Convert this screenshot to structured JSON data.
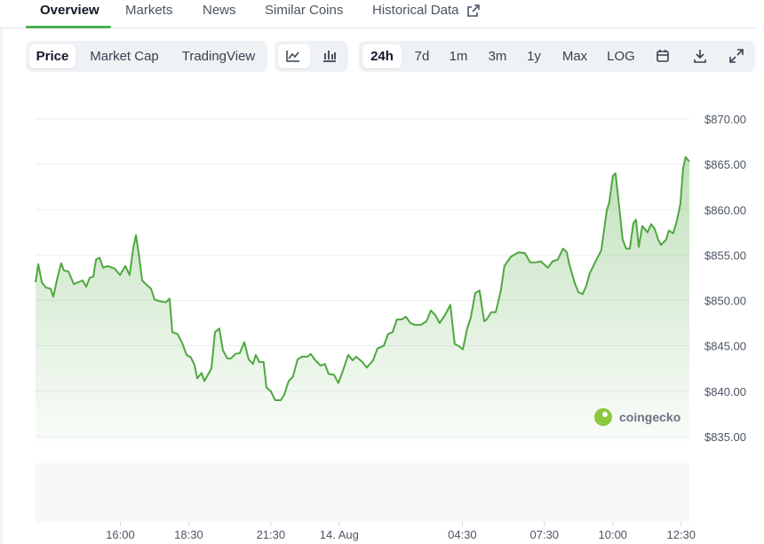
{
  "tabs": [
    "Overview",
    "Markets",
    "News",
    "Similar Coins",
    "Historical Data"
  ],
  "buttons": {
    "views": [
      "Price",
      "Market Cap",
      "TradingView"
    ],
    "ranges": [
      "24h",
      "7d",
      "1m",
      "3m",
      "1y",
      "Max",
      "LOG"
    ]
  },
  "watermark": "coingecko",
  "chart_data": {
    "type": "area",
    "color": "#4ea83f",
    "x": [
      12.9,
      13.0,
      13.13,
      13.29,
      13.45,
      13.55,
      13.71,
      13.84,
      13.94,
      14.1,
      14.3,
      14.46,
      14.62,
      14.75,
      14.88,
      15.01,
      15.11,
      15.24,
      15.37,
      15.53,
      15.79,
      15.99,
      16.18,
      16.34,
      16.47,
      16.57,
      16.67,
      16.8,
      16.93,
      17.12,
      17.25,
      17.45,
      17.67,
      17.8,
      17.9,
      18.09,
      18.26,
      18.42,
      18.58,
      18.71,
      18.81,
      18.97,
      19.07,
      19.2,
      19.33,
      19.46,
      19.62,
      19.75,
      19.91,
      20.04,
      20.21,
      20.37,
      20.53,
      20.69,
      20.85,
      20.95,
      21.08,
      21.24,
      21.34,
      21.5,
      21.66,
      21.86,
      21.99,
      22.15,
      22.31,
      22.48,
      22.64,
      22.84,
      22.96,
      23.13,
      23.32,
      23.48,
      23.61,
      23.81,
      23.97,
      24.13,
      24.33,
      24.49,
      24.62,
      24.85,
      25.01,
      25.24,
      25.4,
      25.63,
      25.79,
      25.95,
      26.11,
      26.28,
      26.44,
      26.6,
      26.76,
      26.99,
      27.19,
      27.35,
      27.51,
      27.67,
      27.87,
      28.06,
      28.22,
      28.35,
      28.52,
      28.68,
      28.81,
      28.97,
      29.13,
      29.3,
      29.39,
      29.56,
      29.72,
      29.91,
      30.04,
      30.27,
      30.56,
      30.79,
      30.98,
      31.18,
      31.37,
      31.63,
      31.8,
      31.99,
      32.18,
      32.32,
      32.41,
      32.61,
      32.74,
      32.9,
      33.03,
      33.16,
      33.29,
      33.42,
      33.58,
      33.78,
      33.87,
      34.0,
      34.1,
      34.23,
      34.36,
      34.49,
      34.62,
      34.75,
      34.85,
      34.95,
      35.08,
      35.27,
      35.4,
      35.53,
      35.66,
      35.76,
      35.95,
      36.05,
      36.21,
      36.34,
      36.47,
      36.57,
      36.66,
      36.8
    ],
    "values": [
      852.0,
      854.0,
      852.0,
      851.4,
      851.3,
      850.4,
      852.6,
      854.1,
      853.3,
      853.2,
      851.8,
      852.0,
      852.2,
      851.5,
      852.5,
      852.6,
      854.5,
      854.7,
      853.6,
      853.8,
      853.5,
      852.8,
      853.8,
      852.8,
      855.7,
      857.2,
      855.2,
      852.2,
      851.8,
      851.3,
      850.1,
      849.9,
      849.8,
      850.2,
      846.5,
      846.3,
      845.3,
      844.0,
      843.7,
      842.9,
      841.4,
      842.0,
      841.1,
      841.8,
      842.5,
      846.5,
      846.9,
      844.5,
      843.6,
      843.6,
      844.1,
      844.2,
      845.4,
      843.5,
      843.0,
      844.0,
      843.2,
      843.2,
      840.4,
      840.0,
      839.0,
      839.0,
      839.6,
      841.1,
      841.6,
      843.5,
      843.8,
      843.8,
      844.1,
      843.4,
      842.8,
      843.0,
      841.9,
      841.8,
      840.9,
      842.2,
      844.0,
      843.4,
      843.8,
      843.2,
      842.6,
      843.4,
      844.7,
      845.0,
      846.3,
      846.5,
      847.9,
      847.9,
      848.2,
      847.5,
      847.3,
      847.3,
      847.7,
      848.9,
      848.4,
      847.5,
      848.4,
      849.5,
      845.2,
      845.0,
      844.6,
      846.9,
      848.1,
      850.8,
      851.1,
      847.7,
      847.9,
      848.7,
      848.7,
      851.1,
      853.8,
      854.8,
      855.3,
      855.2,
      854.2,
      854.2,
      854.3,
      853.6,
      854.3,
      854.5,
      855.7,
      855.3,
      854.0,
      851.9,
      850.9,
      850.7,
      851.6,
      853.0,
      853.8,
      854.6,
      855.5,
      859.9,
      860.8,
      863.7,
      864.0,
      860.4,
      856.7,
      855.7,
      855.7,
      858.5,
      858.9,
      855.9,
      858.2,
      857.5,
      858.4,
      857.9,
      856.7,
      856.1,
      856.7,
      857.7,
      857.4,
      858.7,
      860.6,
      864.5,
      865.8,
      865.3
    ],
    "xlim": [
      12.9,
      36.8
    ],
    "xticks": [
      {
        "value": 16,
        "label": "16:00"
      },
      {
        "value": 18.5,
        "label": "18:30"
      },
      {
        "value": 21.5,
        "label": "21:30"
      },
      {
        "value": 24,
        "label": "14. Aug"
      },
      {
        "value": 28.5,
        "label": "04:30"
      },
      {
        "value": 31.5,
        "label": "07:30"
      },
      {
        "value": 34,
        "label": "10:00"
      },
      {
        "value": 36.5,
        "label": "12:30"
      }
    ],
    "ylim": [
      834.5,
      870
    ],
    "yticks": [
      {
        "value": 835,
        "label": "$835.00"
      },
      {
        "value": 840,
        "label": "$840.00"
      },
      {
        "value": 845,
        "label": "$845.00"
      },
      {
        "value": 850,
        "label": "$850.00"
      },
      {
        "value": 855,
        "label": "$855.00"
      },
      {
        "value": 860,
        "label": "$860.00"
      },
      {
        "value": 865,
        "label": "$865.00"
      },
      {
        "value": 870,
        "label": "$870.00"
      }
    ],
    "grid": true
  }
}
